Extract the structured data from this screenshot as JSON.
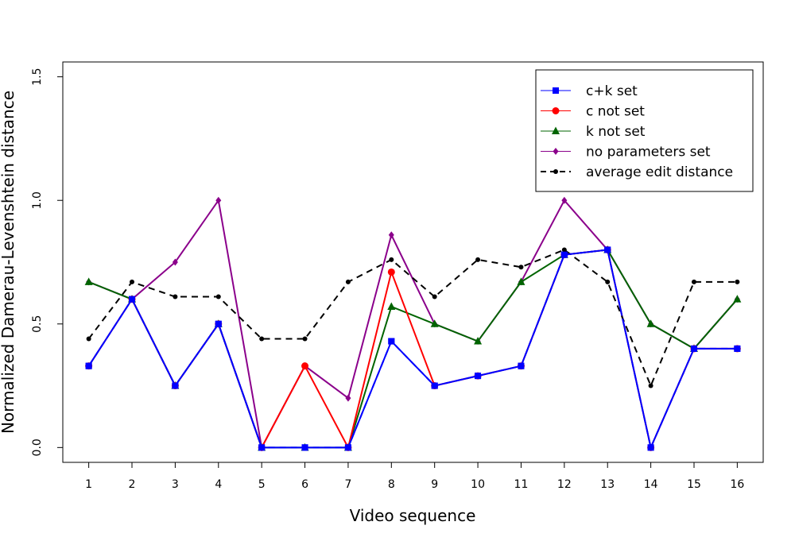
{
  "chart_data": {
    "type": "line",
    "xlabel": "Video sequence",
    "ylabel": "Normalized Damerau-Levenshtein distance",
    "x": [
      1,
      2,
      3,
      4,
      5,
      6,
      7,
      8,
      9,
      10,
      11,
      12,
      13,
      14,
      15,
      16
    ],
    "x_tick_labels": [
      "1",
      "2",
      "3",
      "4",
      "5",
      "6",
      "7",
      "8",
      "9",
      "10",
      "11",
      "12",
      "13",
      "14",
      "15",
      "16"
    ],
    "y_ticks": [
      0.0,
      0.5,
      1.0,
      1.5
    ],
    "y_tick_labels": [
      "0.0",
      "0.5",
      "1.0",
      "1.5"
    ],
    "xlim": [
      0.4,
      16.6
    ],
    "ylim": [
      -0.06,
      1.56
    ],
    "grid": false,
    "legend_position": "top-right",
    "series": [
      {
        "name": "c+k set",
        "color": "#0000ff",
        "marker": "square",
        "linestyle": "solid",
        "values": [
          0.33,
          0.6,
          0.25,
          0.5,
          0.0,
          0.0,
          0.0,
          0.43,
          0.25,
          0.29,
          0.33,
          0.78,
          0.8,
          0.0,
          0.4,
          0.4
        ]
      },
      {
        "name": "c not set",
        "color": "#ff0000",
        "marker": "circle",
        "linestyle": "solid",
        "values": [
          0.33,
          0.6,
          0.25,
          0.5,
          0.0,
          0.33,
          0.0,
          0.71,
          0.25,
          0.29,
          0.33,
          0.78,
          0.8,
          0.0,
          0.4,
          0.4
        ]
      },
      {
        "name": "k not set",
        "color": "#006400",
        "marker": "triangle",
        "linestyle": "solid",
        "values": [
          0.67,
          0.6,
          0.25,
          0.5,
          0.0,
          0.0,
          0.0,
          0.57,
          0.5,
          0.43,
          0.67,
          0.78,
          0.8,
          0.5,
          0.4,
          0.6
        ]
      },
      {
        "name": "no parameters set",
        "color": "#8b008b",
        "marker": "diamond",
        "linestyle": "solid",
        "values": [
          0.67,
          0.6,
          0.75,
          1.0,
          0.0,
          0.33,
          0.2,
          0.86,
          0.5,
          0.43,
          0.67,
          1.0,
          0.8,
          0.5,
          0.4,
          0.6
        ]
      },
      {
        "name": "average edit distance",
        "color": "#000000",
        "marker": "dot",
        "linestyle": "dashed",
        "values": [
          0.44,
          0.67,
          0.61,
          0.61,
          0.44,
          0.44,
          0.67,
          0.76,
          0.61,
          0.76,
          0.73,
          0.8,
          0.67,
          0.25,
          0.67,
          0.67
        ]
      }
    ],
    "draw_order": [
      "no parameters set",
      "k not set",
      "c not set",
      "c+k set",
      "average edit distance"
    ],
    "overlay_dashed": {
      "series": "c+k set",
      "over": "c not set",
      "color": "#0000ff"
    }
  }
}
